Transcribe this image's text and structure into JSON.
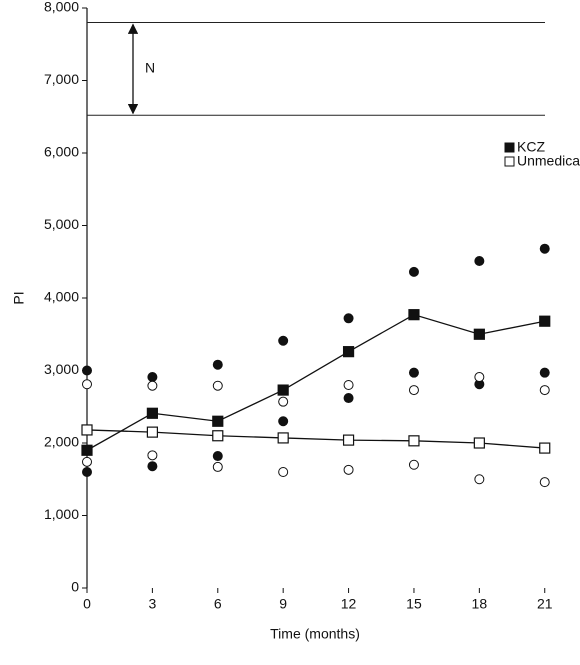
{
  "chart_data": {
    "type": "line",
    "x_label": "Time (months)",
    "y_label": "PI",
    "x": [
      0,
      3,
      6,
      9,
      12,
      15,
      18,
      21
    ],
    "xlim": [
      0,
      21.7
    ],
    "xticks": [
      0,
      3,
      6,
      9,
      12,
      15,
      18,
      21
    ],
    "ylim": [
      0,
      8000
    ],
    "yticks": [
      0,
      {
        "value": 1000,
        "label": "1,000"
      },
      {
        "value": 2000,
        "label": "2,000"
      },
      {
        "value": 3000,
        "label": "3,000"
      },
      {
        "value": 4000,
        "label": "4,000"
      },
      {
        "value": 5000,
        "label": "5,000"
      },
      {
        "value": 6000,
        "label": "6,000"
      },
      {
        "value": 7000,
        "label": "7,000"
      },
      {
        "value": 8000,
        "label": "8,000"
      }
    ],
    "reference_lines": [
      7800,
      6520
    ],
    "range_label": "N",
    "legend": "upper right",
    "series": [
      {
        "name": "KCZ",
        "color": "#111111",
        "marker": "filled",
        "values": [
          1900,
          2410,
          2300,
          2730,
          3260,
          3770,
          3500,
          3680
        ],
        "high": [
          3000,
          2910,
          3080,
          3410,
          3720,
          4360,
          4510,
          4680
        ],
        "low": [
          1600,
          1680,
          1820,
          2300,
          2620,
          2970,
          2810,
          2970
        ]
      },
      {
        "name": "Unmedicated",
        "color": "#111111",
        "marker": "open",
        "values": [
          2180,
          2150,
          2100,
          2070,
          2040,
          2030,
          2000,
          1930
        ],
        "high": [
          2810,
          2790,
          2790,
          2570,
          2800,
          2730,
          2910,
          2730
        ],
        "low": [
          1740,
          1830,
          1670,
          1600,
          1630,
          1700,
          1500,
          1460
        ]
      }
    ]
  }
}
